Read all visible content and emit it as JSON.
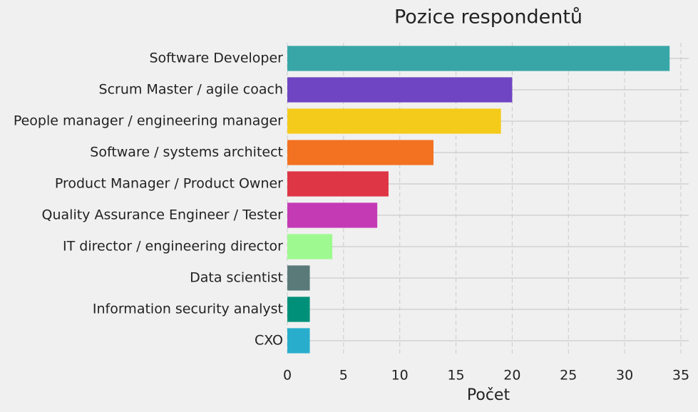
{
  "chart_data": {
    "type": "bar",
    "orientation": "horizontal",
    "title": "Pozice respondentů",
    "x_label": "Počet",
    "categories": [
      "Software Developer",
      "Scrum Master / agile coach",
      "People manager / engineering manager",
      "Software / systems architect",
      "Product Manager / Product Owner",
      "Quality Assurance Engineer / Tester",
      "IT director / engineering director",
      "Data scientist",
      "Information security analyst",
      "CXO"
    ],
    "values": [
      34,
      20,
      19,
      13,
      9,
      8,
      4,
      2,
      2,
      2
    ],
    "colors": [
      "#38a6a6",
      "#6f45c3",
      "#f5cb1b",
      "#f27221",
      "#de3645",
      "#c43ab5",
      "#9efa90",
      "#5a7a7a",
      "#00907a",
      "#28aecc"
    ],
    "xlim": [
      0,
      35.7
    ],
    "xticks": [
      0,
      5,
      10,
      15,
      20,
      25,
      30,
      35
    ],
    "grid": true
  }
}
